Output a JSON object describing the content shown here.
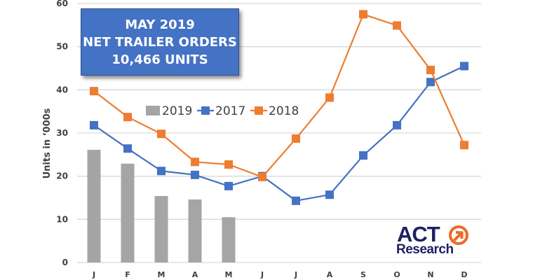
{
  "title_box": {
    "line1": "MAY 2019",
    "line2": "NET TRAILER ORDERS",
    "line3": "10,466 UNITS",
    "background": "#4472c4"
  },
  "logo": {
    "top": "ACT",
    "bottom": "Research",
    "icon": "arrow-circle-icon",
    "navy": "#1f2063",
    "orange": "#ed6a26"
  },
  "chart_data": {
    "type": "bar+line",
    "title": "MAY 2019 NET TRAILER ORDERS 10,466 UNITS",
    "xlabel": "",
    "ylabel": "Units in ‘000s",
    "ylim": [
      0,
      60
    ],
    "yticks": [
      0,
      10,
      20,
      30,
      40,
      50,
      60
    ],
    "grid": true,
    "legend_position": "inside-top-left",
    "categories": [
      "J",
      "F",
      "M",
      "A",
      "M",
      "J",
      "J",
      "A",
      "S",
      "O",
      "N",
      "D"
    ],
    "series": [
      {
        "name": "2019",
        "type": "bar",
        "color": "#a5a5a5",
        "values": [
          26.1,
          22.9,
          15.4,
          14.6,
          10.5,
          null,
          null,
          null,
          null,
          null,
          null,
          null
        ]
      },
      {
        "name": "2017",
        "type": "line",
        "marker": "square",
        "color": "#4472c4",
        "values": [
          31.8,
          26.4,
          21.2,
          20.3,
          17.7,
          20.0,
          14.3,
          15.7,
          24.8,
          31.8,
          41.8,
          45.5
        ]
      },
      {
        "name": "2018",
        "type": "line",
        "marker": "square",
        "color": "#ed7d31",
        "values": [
          39.7,
          33.7,
          29.8,
          23.3,
          22.7,
          19.8,
          28.7,
          38.2,
          57.5,
          54.9,
          44.6,
          27.2
        ]
      }
    ]
  },
  "legend": [
    {
      "label": "2019",
      "color": "#a5a5a5",
      "kind": "bar"
    },
    {
      "label": "2017",
      "color": "#4472c4",
      "kind": "line"
    },
    {
      "label": "2018",
      "color": "#ed7d31",
      "kind": "line"
    }
  ]
}
